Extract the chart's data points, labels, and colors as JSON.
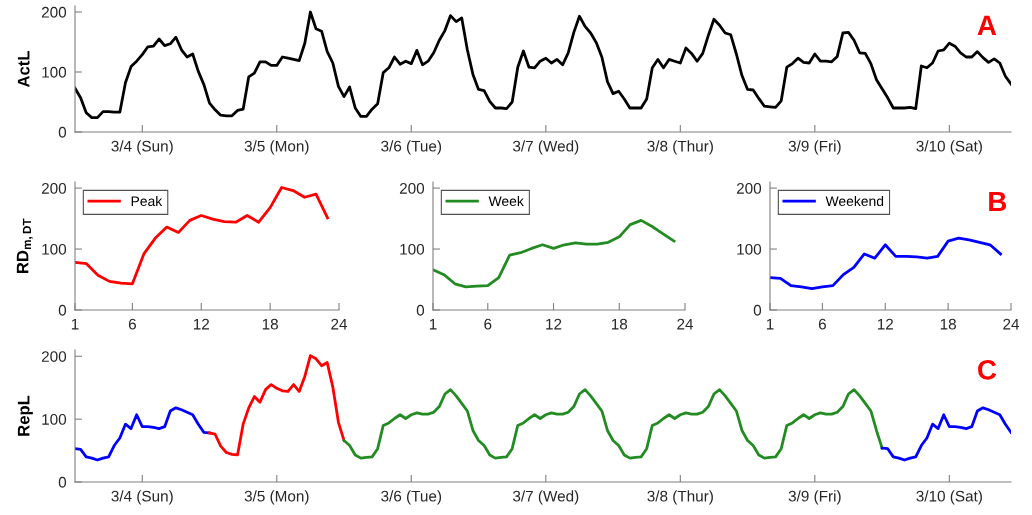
{
  "chart_data": [
    {
      "type": "line",
      "ylabel": "ActL",
      "categories": [
        null,
        null,
        null,
        null,
        null,
        null,
        null,
        null,
        null,
        null,
        null,
        null,
        "3/4 (Sun)",
        null,
        null,
        null,
        null,
        null,
        null,
        null,
        null,
        null,
        null,
        null,
        null,
        null,
        null,
        null,
        null,
        null,
        null,
        null,
        null,
        null,
        null,
        null,
        "3/5 (Mon)",
        null,
        null,
        null,
        null,
        null,
        null,
        null,
        null,
        null,
        null,
        null,
        null,
        null,
        null,
        null,
        null,
        null,
        null,
        null,
        null,
        null,
        null,
        null,
        "3/6 (Tue)",
        null,
        null,
        null,
        null,
        null,
        null,
        null,
        null,
        null,
        null,
        null,
        null,
        null,
        null,
        null,
        null,
        null,
        null,
        null,
        null,
        null,
        null,
        null,
        "3/7 (Wed)",
        null,
        null,
        null,
        null,
        null,
        null,
        null,
        null,
        null,
        null,
        null,
        null,
        null,
        null,
        null,
        null,
        null,
        null,
        null,
        null,
        null,
        null,
        null,
        "3/8 (Thur)",
        null,
        null,
        null,
        null,
        null,
        null,
        null,
        null,
        null,
        null,
        null,
        null,
        null,
        null,
        null,
        null,
        null,
        null,
        null,
        null,
        null,
        null,
        null,
        "3/9 (Fri)",
        null,
        null,
        null,
        null,
        null,
        null,
        null,
        null,
        null,
        null,
        null,
        null,
        null,
        null,
        null,
        null,
        null,
        null,
        null,
        null,
        null,
        null,
        null,
        "3/10 (Sat)",
        null,
        null,
        null,
        null,
        null,
        null,
        null,
        null,
        null,
        null,
        null
      ],
      "ylim": [
        0,
        210
      ],
      "yticks": [
        0,
        100,
        200
      ],
      "grid": false,
      "legend": false,
      "annotations": [
        "A"
      ],
      "series": [
        {
          "color": "#000000",
          "values": [
            73,
            57,
            32,
            24,
            24,
            34,
            34,
            33,
            33,
            82,
            109,
            118,
            129,
            142,
            143,
            155,
            144,
            147,
            158,
            137,
            125,
            130,
            101,
            79,
            48,
            37,
            28,
            27,
            27,
            36,
            38,
            92,
            98,
            117,
            117,
            111,
            111,
            125,
            123,
            121,
            119,
            148,
            200,
            172,
            168,
            134,
            115,
            76,
            59,
            75,
            40,
            26,
            26,
            38,
            47,
            99,
            107,
            125,
            113,
            118,
            114,
            136,
            112,
            118,
            132,
            153,
            169,
            194,
            184,
            190,
            137,
            96,
            71,
            69,
            51,
            40,
            40,
            39,
            50,
            108,
            135,
            108,
            107,
            118,
            123,
            115,
            121,
            112,
            132,
            166,
            193,
            176,
            165,
            149,
            125,
            84,
            64,
            68,
            55,
            40,
            40,
            40,
            55,
            107,
            121,
            107,
            121,
            118,
            115,
            140,
            131,
            118,
            131,
            161,
            188,
            178,
            165,
            162,
            130,
            94,
            71,
            70,
            56,
            43,
            42,
            41,
            52,
            108,
            114,
            123,
            116,
            115,
            130,
            118,
            118,
            117,
            126,
            165,
            166,
            153,
            132,
            131,
            114,
            87,
            72,
            57,
            40,
            40,
            40,
            41,
            39,
            110,
            107,
            115,
            135,
            137,
            148,
            143,
            132,
            125,
            125,
            134,
            124,
            116,
            122,
            115,
            93,
            80
          ]
        }
      ]
    },
    {
      "type": "line",
      "ylabel": "RD$_{m,DT}$",
      "x": [
        1,
        2,
        3,
        4,
        5,
        6,
        7,
        8,
        9,
        10,
        11,
        12,
        13,
        14,
        15,
        16,
        17,
        18,
        19,
        20,
        21,
        22,
        23
      ],
      "xlim": [
        1,
        24
      ],
      "xticks": [
        1,
        6,
        12,
        18,
        24
      ],
      "ylim": [
        0,
        210
      ],
      "yticks": [
        0,
        100,
        200
      ],
      "grid": false,
      "legend": "top left",
      "series": [
        {
          "name": "Peak",
          "color": "#ff0000",
          "values": [
            78,
            76,
            57,
            47,
            44,
            43,
            92,
            118,
            136,
            127,
            147,
            155,
            149,
            145,
            144,
            155,
            144,
            168,
            201,
            196,
            185,
            190,
            151
          ]
        }
      ]
    },
    {
      "type": "line",
      "x": [
        1,
        2,
        3,
        4,
        5,
        6,
        7,
        8,
        9,
        10,
        11,
        12,
        13,
        14,
        15,
        16,
        17,
        18,
        19,
        20,
        21,
        22,
        23
      ],
      "xlim": [
        1,
        24
      ],
      "xticks": [
        1,
        6,
        12,
        18,
        24
      ],
      "ylim": [
        0,
        210
      ],
      "yticks": [
        0,
        100,
        200
      ],
      "grid": false,
      "legend": "top left",
      "series": [
        {
          "name": "Week",
          "color": "#228b22",
          "values": [
            66,
            58,
            43,
            38,
            39,
            40,
            53,
            90,
            94,
            101,
            107,
            101,
            107,
            110,
            108,
            108,
            111,
            120,
            140,
            147,
            137,
            125,
            113
          ]
        }
      ]
    },
    {
      "type": "line",
      "x": [
        1,
        2,
        3,
        4,
        5,
        6,
        7,
        8,
        9,
        10,
        11,
        12,
        13,
        14,
        15,
        16,
        17,
        18,
        19,
        20,
        21,
        22,
        23
      ],
      "xlim": [
        1,
        24
      ],
      "xticks": [
        1,
        6,
        12,
        18,
        24
      ],
      "ylim": [
        0,
        210
      ],
      "yticks": [
        0,
        100,
        200
      ],
      "grid": false,
      "legend": "top left",
      "annotations": [
        "B"
      ],
      "series": [
        {
          "name": "Weekend",
          "color": "#0000ff",
          "values": [
            53,
            52,
            40,
            38,
            35,
            38,
            40,
            58,
            70,
            92,
            85,
            107,
            88,
            88,
            87,
            85,
            88,
            113,
            118,
            115,
            111,
            107,
            92
          ]
        }
      ]
    },
    {
      "type": "line",
      "ylabel": "RepL",
      "categories": [
        null,
        null,
        null,
        null,
        null,
        null,
        null,
        null,
        null,
        null,
        null,
        null,
        "3/4 (Sun)",
        null,
        null,
        null,
        null,
        null,
        null,
        null,
        null,
        null,
        null,
        null,
        null,
        null,
        null,
        null,
        null,
        null,
        null,
        null,
        null,
        null,
        null,
        null,
        "3/5 (Mon)",
        null,
        null,
        null,
        null,
        null,
        null,
        null,
        null,
        null,
        null,
        null,
        null,
        null,
        null,
        null,
        null,
        null,
        null,
        null,
        null,
        null,
        null,
        null,
        "3/6 (Tue)",
        null,
        null,
        null,
        null,
        null,
        null,
        null,
        null,
        null,
        null,
        null,
        null,
        null,
        null,
        null,
        null,
        null,
        null,
        null,
        null,
        null,
        null,
        null,
        "3/7 (Wed)",
        null,
        null,
        null,
        null,
        null,
        null,
        null,
        null,
        null,
        null,
        null,
        null,
        null,
        null,
        null,
        null,
        null,
        null,
        null,
        null,
        null,
        null,
        null,
        "3/8 (Thur)",
        null,
        null,
        null,
        null,
        null,
        null,
        null,
        null,
        null,
        null,
        null,
        null,
        null,
        null,
        null,
        null,
        null,
        null,
        null,
        null,
        null,
        null,
        null,
        "3/9 (Fri)",
        null,
        null,
        null,
        null,
        null,
        null,
        null,
        null,
        null,
        null,
        null,
        null,
        null,
        null,
        null,
        null,
        null,
        null,
        null,
        null,
        null,
        null,
        null,
        "3/10 (Sat)",
        null,
        null,
        null,
        null,
        null,
        null,
        null,
        null,
        null,
        null,
        null
      ],
      "ylim": [
        0,
        210
      ],
      "yticks": [
        0,
        100,
        200
      ],
      "grid": false,
      "legend": false,
      "annotations": [
        "C"
      ],
      "series": [
        {
          "color": "#0000ff",
          "values": [
            53,
            52,
            40,
            38,
            35,
            38,
            40,
            58,
            70,
            92,
            85,
            107,
            88,
            88,
            87,
            85,
            88,
            113,
            118,
            115,
            111,
            107,
            92,
            79,
            78,
            null,
            null,
            null,
            null,
            null,
            null,
            null,
            null,
            null,
            null,
            null,
            null,
            null,
            null,
            null,
            null,
            null,
            null,
            null,
            null,
            null,
            null,
            null,
            null,
            null,
            null,
            null,
            null,
            null,
            null,
            null,
            null,
            null,
            null,
            null,
            null,
            null,
            null,
            null,
            null,
            null,
            null,
            null,
            null,
            null,
            null,
            null,
            null,
            null,
            null,
            null,
            null,
            null,
            null,
            null,
            null,
            null,
            null,
            null,
            null,
            null,
            null,
            null,
            null,
            null,
            null,
            null,
            null,
            null,
            null,
            null,
            null,
            null,
            null,
            null,
            null,
            null,
            null,
            null,
            null,
            null,
            null,
            null,
            null,
            null,
            null,
            null,
            null,
            null,
            null,
            null,
            null,
            null,
            null,
            null,
            null,
            null,
            null,
            null,
            null,
            null,
            null,
            null,
            null,
            null,
            null,
            null,
            null,
            null,
            null,
            null,
            null,
            null,
            null,
            null,
            null,
            null,
            null,
            null,
            null,
            null,
            null,
            null,
            null,
            null,
            null,
            null,
            null,
            null,
            null,
            null,
            null,
            null,
            null,
            null,
            null,
            null,
            null,
            null,
            null,
            null,
            null,
            null
          ]
        },
        {
          "color": "#ff0000",
          "values": [
            null,
            null,
            null,
            null,
            null,
            null,
            null,
            null,
            null,
            null,
            null,
            null,
            null,
            null,
            null,
            null,
            null,
            null,
            null,
            null,
            null,
            null,
            null,
            null,
            78,
            76,
            57,
            47,
            44,
            43,
            92,
            118,
            136,
            127,
            147,
            155,
            149,
            145,
            144,
            155,
            144,
            168,
            201,
            196,
            185,
            190,
            151,
            95,
            66,
            null,
            null,
            null,
            null,
            null,
            null,
            null,
            null,
            null,
            null,
            null,
            null,
            null,
            null,
            null,
            null,
            null,
            null,
            null,
            null,
            null,
            null,
            null,
            null,
            null,
            null,
            null,
            null,
            null,
            null,
            null,
            null,
            null,
            null,
            null,
            null,
            null,
            null,
            null,
            null,
            null,
            null,
            null,
            null,
            null,
            null,
            null,
            null,
            null,
            null,
            null,
            null,
            null,
            null,
            null,
            null,
            null,
            null,
            null,
            null,
            null,
            null,
            null,
            null,
            null,
            null,
            null,
            null,
            null,
            null,
            null,
            null,
            null,
            null,
            null,
            null,
            null,
            null,
            null,
            null,
            null,
            null,
            null,
            null,
            null,
            null,
            null,
            null,
            null,
            null,
            null,
            null,
            null,
            null,
            null,
            null,
            null,
            null,
            null,
            null,
            null,
            null,
            null,
            null,
            null,
            null,
            null,
            null,
            null,
            null,
            null,
            null,
            null,
            null,
            null,
            null,
            null,
            null,
            null
          ]
        },
        {
          "color": "#228b22",
          "values": [
            null,
            null,
            null,
            null,
            null,
            null,
            null,
            null,
            null,
            null,
            null,
            null,
            null,
            null,
            null,
            null,
            null,
            null,
            null,
            null,
            null,
            null,
            null,
            null,
            null,
            null,
            null,
            null,
            null,
            null,
            null,
            null,
            null,
            null,
            null,
            null,
            null,
            null,
            null,
            null,
            null,
            null,
            null,
            null,
            null,
            null,
            null,
            null,
            66,
            58,
            43,
            38,
            39,
            40,
            53,
            90,
            94,
            101,
            107,
            101,
            107,
            110,
            108,
            108,
            111,
            120,
            140,
            147,
            137,
            125,
            113,
            82,
            66,
            58,
            43,
            38,
            39,
            40,
            53,
            90,
            94,
            101,
            107,
            101,
            107,
            110,
            108,
            108,
            111,
            120,
            140,
            147,
            137,
            125,
            113,
            82,
            66,
            58,
            43,
            38,
            39,
            40,
            53,
            90,
            94,
            101,
            107,
            101,
            107,
            110,
            108,
            108,
            111,
            120,
            140,
            147,
            137,
            125,
            113,
            82,
            66,
            58,
            43,
            38,
            39,
            40,
            53,
            90,
            94,
            101,
            107,
            101,
            107,
            110,
            108,
            108,
            111,
            120,
            140,
            147,
            137,
            125,
            113,
            82,
            54,
            null,
            null,
            null,
            null,
            null,
            null,
            null,
            null,
            null,
            null,
            null,
            null,
            null,
            null,
            null,
            null,
            null,
            null,
            null,
            null,
            null,
            null,
            null
          ]
        },
        {
          "color": "#0000ff",
          "values": [
            null,
            null,
            null,
            null,
            null,
            null,
            null,
            null,
            null,
            null,
            null,
            null,
            null,
            null,
            null,
            null,
            null,
            null,
            null,
            null,
            null,
            null,
            null,
            null,
            null,
            null,
            null,
            null,
            null,
            null,
            null,
            null,
            null,
            null,
            null,
            null,
            null,
            null,
            null,
            null,
            null,
            null,
            null,
            null,
            null,
            null,
            null,
            null,
            null,
            null,
            null,
            null,
            null,
            null,
            null,
            null,
            null,
            null,
            null,
            null,
            null,
            null,
            null,
            null,
            null,
            null,
            null,
            null,
            null,
            null,
            null,
            null,
            null,
            null,
            null,
            null,
            null,
            null,
            null,
            null,
            null,
            null,
            null,
            null,
            null,
            null,
            null,
            null,
            null,
            null,
            null,
            null,
            null,
            null,
            null,
            null,
            null,
            null,
            null,
            null,
            null,
            null,
            null,
            null,
            null,
            null,
            null,
            null,
            null,
            null,
            null,
            null,
            null,
            null,
            null,
            null,
            null,
            null,
            null,
            null,
            null,
            null,
            null,
            null,
            null,
            null,
            null,
            null,
            null,
            null,
            null,
            null,
            null,
            null,
            null,
            null,
            null,
            null,
            null,
            null,
            null,
            null,
            null,
            null,
            54,
            53,
            40,
            38,
            35,
            38,
            40,
            58,
            70,
            92,
            85,
            107,
            88,
            88,
            87,
            85,
            88,
            113,
            118,
            115,
            111,
            107,
            92,
            79
          ]
        }
      ]
    }
  ]
}
